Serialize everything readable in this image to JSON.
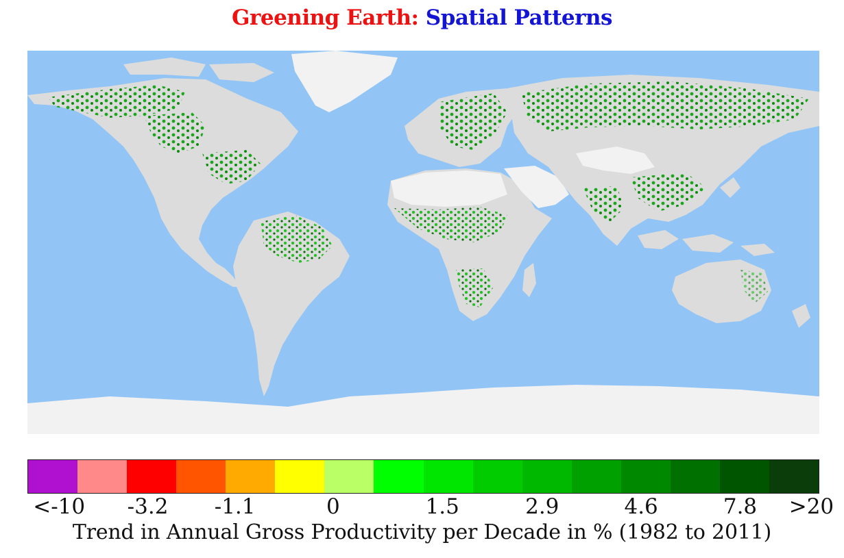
{
  "title": {
    "part1": "Greening Earth:",
    "part2": "Spatial Patterns",
    "part1_color": "#ee1111",
    "part2_color": "#1414d4"
  },
  "map": {
    "ocean_color": "#92c5f5",
    "ice_color": "#f2f2f2",
    "land_color": "#d8d8d8"
  },
  "legend": {
    "colors": [
      "#b010d0",
      "#ff8888",
      "#ff0000",
      "#ff5500",
      "#ffaa00",
      "#ffff00",
      "#bbff66",
      "#00ff00",
      "#00e600",
      "#00cc00",
      "#00b800",
      "#00a000",
      "#008800",
      "#007000",
      "#005500",
      "#0a3d0a"
    ],
    "tick_labels": [
      "<-10",
      "-3.2",
      "-1.1",
      "0",
      "1.5",
      "2.9",
      "4.6",
      "7.8",
      ">20"
    ],
    "caption": "Trend in Annual Gross Productivity per Decade in % (1982 to 2011)"
  }
}
